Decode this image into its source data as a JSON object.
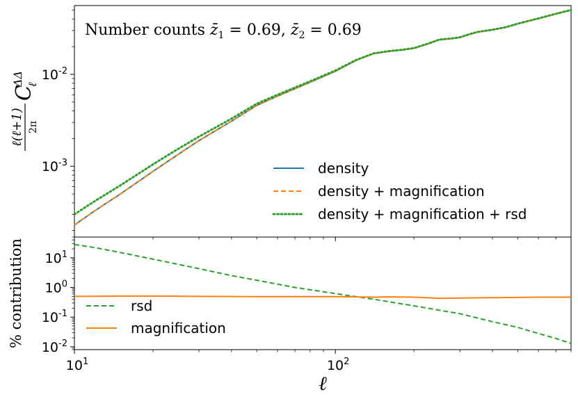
{
  "chart_data": [
    {
      "type": "line",
      "panel": "top",
      "annotation": {
        "prefix": "Number counts ",
        "z1": "0.69",
        "z2": "0.69"
      },
      "ylabel": "ℓ(ℓ+1)/2π C_ℓ^ΔΔ",
      "x_scale": "log",
      "y_scale": "log",
      "xlim": [
        10,
        800
      ],
      "ylim": [
        0.00017,
        0.056
      ],
      "y_ticks": [
        {
          "value": 0.01,
          "base": "10",
          "exp": "-2"
        },
        {
          "value": 0.001,
          "base": "10",
          "exp": "-3"
        }
      ],
      "legend_position": "lower-right",
      "series": [
        {
          "name": "density",
          "color": "#1f77b4",
          "style": "solid",
          "points": [
            [
              10,
              0.00023
            ],
            [
              12,
              0.00033
            ],
            [
              15,
              0.0005
            ],
            [
              20,
              0.00088
            ],
            [
              25,
              0.00135
            ],
            [
              30,
              0.0019
            ],
            [
              40,
              0.0031
            ],
            [
              50,
              0.0046
            ],
            [
              60,
              0.0058
            ],
            [
              80,
              0.0082
            ],
            [
              100,
              0.0108
            ],
            [
              120,
              0.0142
            ],
            [
              140,
              0.0168
            ],
            [
              160,
              0.0178
            ],
            [
              180,
              0.0184
            ],
            [
              200,
              0.0192
            ],
            [
              230,
              0.0218
            ],
            [
              250,
              0.0238
            ],
            [
              280,
              0.0245
            ],
            [
              300,
              0.0252
            ],
            [
              330,
              0.0275
            ],
            [
              350,
              0.0288
            ],
            [
              400,
              0.0305
            ],
            [
              450,
              0.0325
            ],
            [
              500,
              0.0355
            ],
            [
              600,
              0.0405
            ],
            [
              700,
              0.0455
            ],
            [
              800,
              0.05
            ]
          ]
        },
        {
          "name": "density + magnification",
          "color": "#ff7f0e",
          "style": "dashed",
          "points": [
            [
              10,
              0.00023
            ],
            [
              12,
              0.00033
            ],
            [
              15,
              0.0005
            ],
            [
              20,
              0.00088
            ],
            [
              25,
              0.00135
            ],
            [
              30,
              0.0019
            ],
            [
              40,
              0.0031
            ],
            [
              50,
              0.0046
            ],
            [
              60,
              0.0058
            ],
            [
              80,
              0.0082
            ],
            [
              100,
              0.0108
            ],
            [
              120,
              0.0142
            ],
            [
              140,
              0.0168
            ],
            [
              160,
              0.0178
            ],
            [
              180,
              0.0184
            ],
            [
              200,
              0.0192
            ],
            [
              230,
              0.0218
            ],
            [
              250,
              0.0238
            ],
            [
              280,
              0.0245
            ],
            [
              300,
              0.0252
            ],
            [
              330,
              0.0275
            ],
            [
              350,
              0.0288
            ],
            [
              400,
              0.0305
            ],
            [
              450,
              0.0325
            ],
            [
              500,
              0.0355
            ],
            [
              600,
              0.0405
            ],
            [
              700,
              0.0455
            ],
            [
              800,
              0.05
            ]
          ]
        },
        {
          "name": "density + magnification + rsd",
          "color": "#2ca02c",
          "style": "dotted",
          "points": [
            [
              10,
              0.0003
            ],
            [
              12,
              0.00042
            ],
            [
              15,
              0.00062
            ],
            [
              20,
              0.00105
            ],
            [
              25,
              0.00155
            ],
            [
              30,
              0.0021
            ],
            [
              40,
              0.0033
            ],
            [
              50,
              0.0048
            ],
            [
              60,
              0.006
            ],
            [
              80,
              0.0084
            ],
            [
              100,
              0.011
            ],
            [
              120,
              0.0143
            ],
            [
              140,
              0.0169
            ],
            [
              160,
              0.0179
            ],
            [
              180,
              0.0185
            ],
            [
              200,
              0.0193
            ],
            [
              230,
              0.0219
            ],
            [
              250,
              0.0239
            ],
            [
              280,
              0.0246
            ],
            [
              300,
              0.0253
            ],
            [
              330,
              0.0276
            ],
            [
              350,
              0.0289
            ],
            [
              400,
              0.0306
            ],
            [
              450,
              0.0326
            ],
            [
              500,
              0.0356
            ],
            [
              600,
              0.0406
            ],
            [
              700,
              0.0456
            ],
            [
              800,
              0.0501
            ]
          ]
        }
      ]
    },
    {
      "type": "line",
      "panel": "bottom",
      "ylabel": "% contribution",
      "xlabel": "ℓ",
      "x_scale": "log",
      "y_scale": "log",
      "xlim": [
        10,
        800
      ],
      "ylim": [
        0.008,
        50
      ],
      "x_ticks": [
        {
          "value": 10,
          "base": "10",
          "exp": "1"
        },
        {
          "value": 100,
          "base": "10",
          "exp": "2"
        }
      ],
      "y_ticks": [
        {
          "value": 10,
          "base": "10",
          "exp": "1"
        },
        {
          "value": 1,
          "base": "10",
          "exp": "0"
        },
        {
          "value": 0.1,
          "base": "10",
          "exp": "-1"
        },
        {
          "value": 0.01,
          "base": "10",
          "exp": "-2"
        }
      ],
      "legend_position": "lower-left",
      "series": [
        {
          "name": "rsd",
          "color": "#2ca02c",
          "style": "dashed",
          "points": [
            [
              10,
              28
            ],
            [
              12,
              22
            ],
            [
              15,
              15
            ],
            [
              20,
              9
            ],
            [
              30,
              4.3
            ],
            [
              40,
              2.5
            ],
            [
              50,
              1.75
            ],
            [
              70,
              1.0
            ],
            [
              100,
              0.62
            ],
            [
              140,
              0.4
            ],
            [
              200,
              0.24
            ],
            [
              300,
              0.13
            ],
            [
              400,
              0.07
            ],
            [
              500,
              0.045
            ],
            [
              600,
              0.028
            ],
            [
              700,
              0.019
            ],
            [
              800,
              0.013
            ]
          ]
        },
        {
          "name": "magnification",
          "color": "#ff7f0e",
          "style": "solid",
          "points": [
            [
              10,
              0.5
            ],
            [
              15,
              0.51
            ],
            [
              20,
              0.51
            ],
            [
              30,
              0.5
            ],
            [
              50,
              0.49
            ],
            [
              80,
              0.49
            ],
            [
              100,
              0.49
            ],
            [
              120,
              0.48
            ],
            [
              140,
              0.47
            ],
            [
              160,
              0.48
            ],
            [
              200,
              0.47
            ],
            [
              250,
              0.43
            ],
            [
              300,
              0.44
            ],
            [
              400,
              0.45
            ],
            [
              500,
              0.46
            ],
            [
              600,
              0.47
            ],
            [
              800,
              0.47
            ]
          ]
        }
      ]
    }
  ]
}
